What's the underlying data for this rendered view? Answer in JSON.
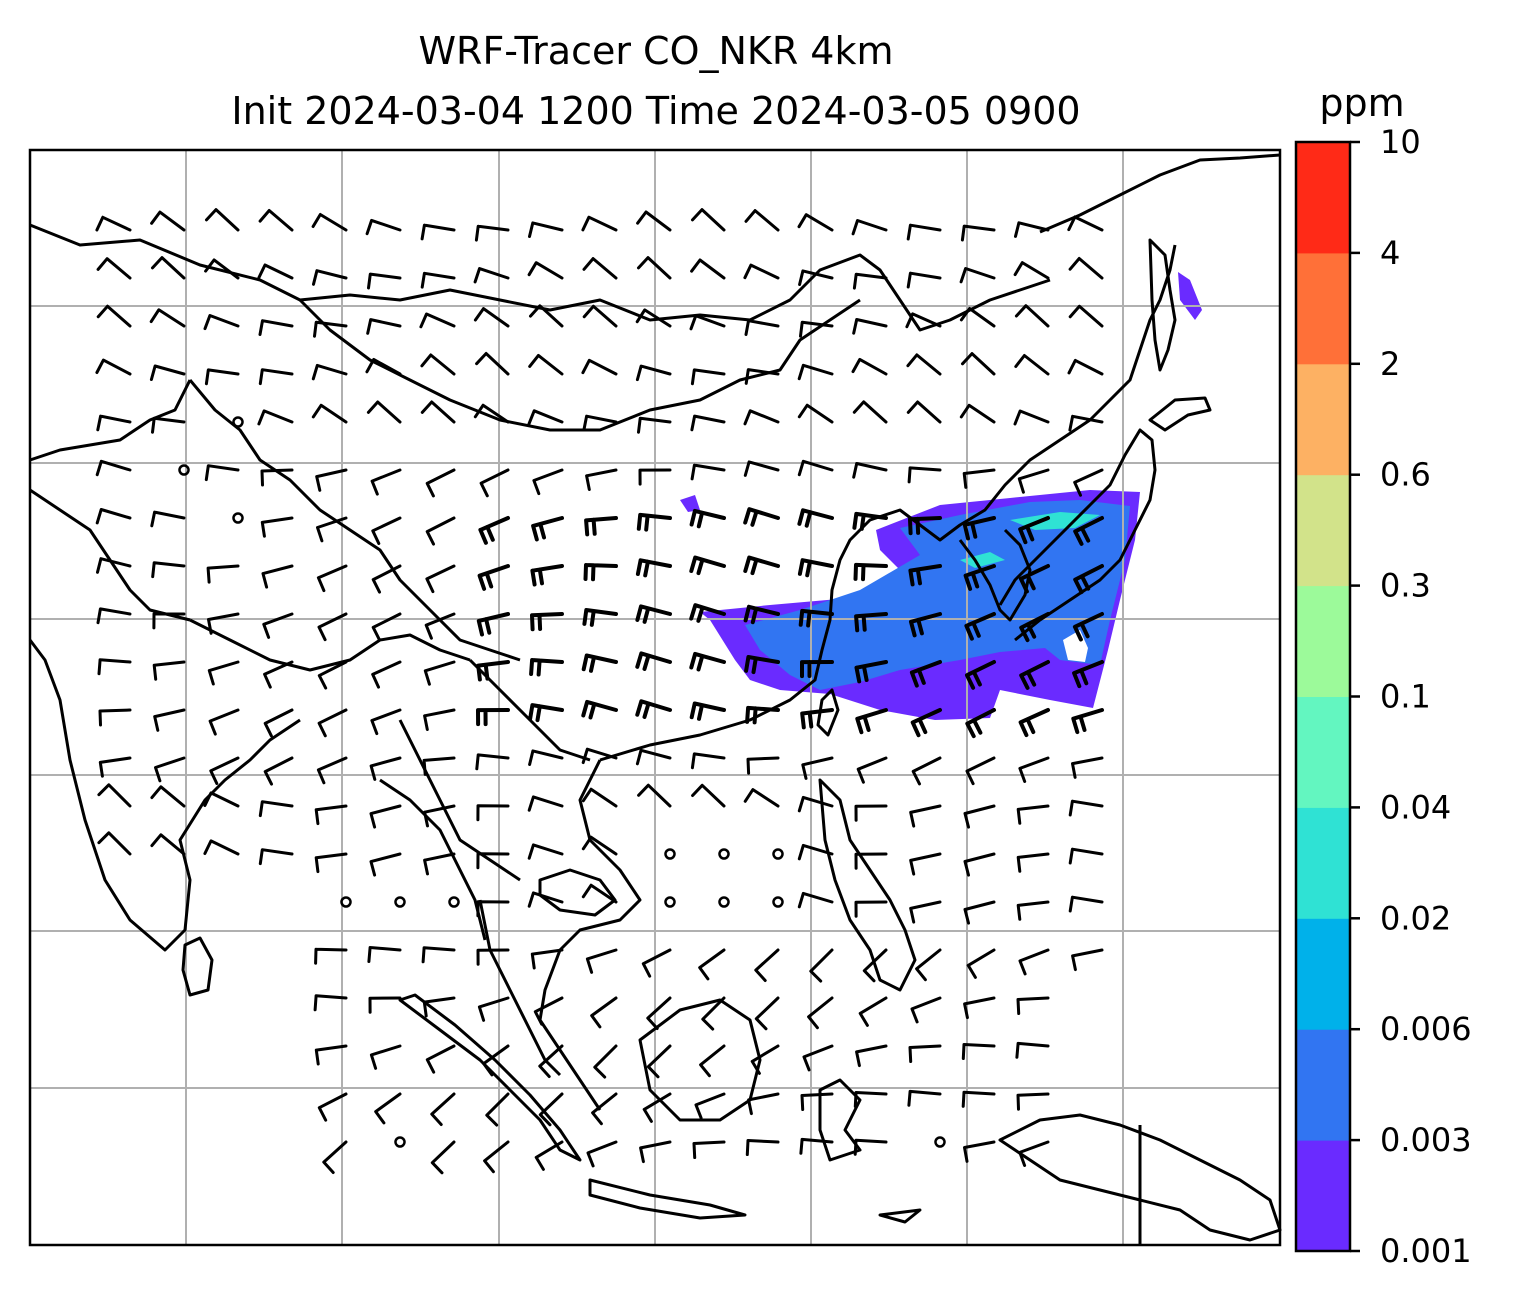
{
  "title_line1": "WRF-Tracer CO_NKR 4km",
  "title_line2": "Init 2024-03-04 1200 Time 2024-03-05 0900",
  "colorbar": {
    "unit": "ppm",
    "ticks": [
      "0.001",
      "0.003",
      "0.006",
      "0.02",
      "0.04",
      "0.1",
      "0.3",
      "0.6",
      "2",
      "4",
      "10"
    ],
    "colors": [
      "#6a2bff",
      "#3175f2",
      "#00b1ea",
      "#2fe2d4",
      "#63f6c0",
      "#9cfa9a",
      "#d2e38a",
      "#fdb163",
      "#ff7038",
      "#ff2a17"
    ]
  },
  "map": {
    "gridline_color": "#b0b0b0",
    "plume_colors": [
      "#6a2bff",
      "#3175f2",
      "#2fe2d4"
    ]
  }
}
